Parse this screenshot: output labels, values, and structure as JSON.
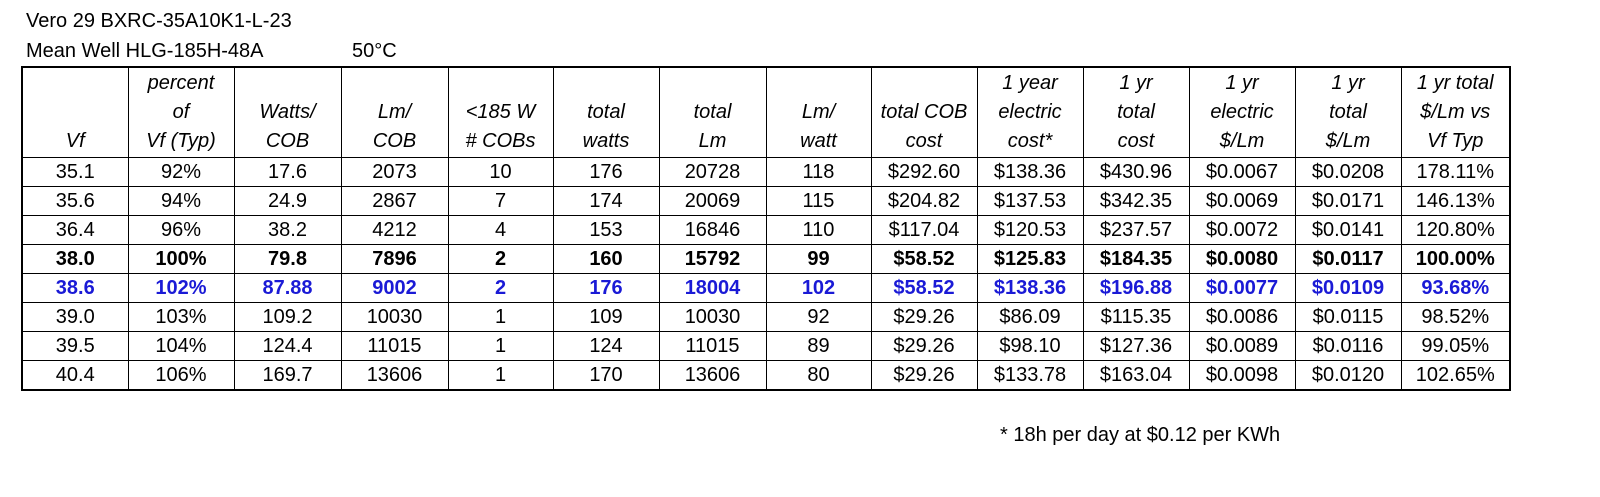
{
  "header": {
    "line1": "Vero 29 BXRC-35A10K1-L-23",
    "line2": "Mean Well HLG-185H-48A",
    "temperature": "50°C"
  },
  "table": {
    "columns": [
      [
        "",
        "",
        "Vf"
      ],
      [
        "percent",
        "of",
        "Vf (Typ)"
      ],
      [
        "",
        "Watts/",
        "COB"
      ],
      [
        "",
        "Lm/",
        "COB"
      ],
      [
        "",
        "<185 W",
        "# COBs"
      ],
      [
        "",
        "total",
        "watts"
      ],
      [
        "",
        "total",
        "Lm"
      ],
      [
        "",
        "Lm/",
        "watt"
      ],
      [
        "",
        "total COB",
        "cost"
      ],
      [
        "1 year",
        "electric",
        "cost*"
      ],
      [
        "1 yr",
        "total",
        "cost"
      ],
      [
        "1 yr",
        "electric",
        "$/Lm"
      ],
      [
        "1 yr",
        "total",
        "$/Lm"
      ],
      [
        "1 yr total",
        "$/Lm vs",
        "Vf Typ"
      ]
    ],
    "rows": [
      {
        "style": "normal",
        "cells": [
          "35.1",
          "92%",
          "17.6",
          "2073",
          "10",
          "176",
          "20728",
          "118",
          "$292.60",
          "$138.36",
          "$430.96",
          "$0.0067",
          "$0.0208",
          "178.11%"
        ]
      },
      {
        "style": "normal",
        "cells": [
          "35.6",
          "94%",
          "24.9",
          "2867",
          "7",
          "174",
          "20069",
          "115",
          "$204.82",
          "$137.53",
          "$342.35",
          "$0.0069",
          "$0.0171",
          "146.13%"
        ]
      },
      {
        "style": "normal",
        "cells": [
          "36.4",
          "96%",
          "38.2",
          "4212",
          "4",
          "153",
          "16846",
          "110",
          "$117.04",
          "$120.53",
          "$237.57",
          "$0.0072",
          "$0.0141",
          "120.80%"
        ]
      },
      {
        "style": "bold",
        "cells": [
          "38.0",
          "100%",
          "79.8",
          "7896",
          "2",
          "160",
          "15792",
          "99",
          "$58.52",
          "$125.83",
          "$184.35",
          "$0.0080",
          "$0.0117",
          "100.00%"
        ]
      },
      {
        "style": "blue",
        "cells": [
          "38.6",
          "102%",
          "87.88",
          "9002",
          "2",
          "176",
          "18004",
          "102",
          "$58.52",
          "$138.36",
          "$196.88",
          "$0.0077",
          "$0.0109",
          "93.68%"
        ]
      },
      {
        "style": "normal",
        "cells": [
          "39.0",
          "103%",
          "109.2",
          "10030",
          "1",
          "109",
          "10030",
          "92",
          "$29.26",
          "$86.09",
          "$115.35",
          "$0.0086",
          "$0.0115",
          "98.52%"
        ]
      },
      {
        "style": "normal",
        "cells": [
          "39.5",
          "104%",
          "124.4",
          "11015",
          "1",
          "124",
          "11015",
          "89",
          "$29.26",
          "$98.10",
          "$127.36",
          "$0.0089",
          "$0.0116",
          "99.05%"
        ]
      },
      {
        "style": "normal",
        "cells": [
          "40.4",
          "106%",
          "169.7",
          "13606",
          "1",
          "170",
          "13606",
          "80",
          "$29.26",
          "$133.78",
          "$163.04",
          "$0.0098",
          "$0.0120",
          "102.65%"
        ]
      }
    ]
  },
  "footnote": "* 18h per day at $0.12 per KWh",
  "colors": {
    "highlight_row": "#1a1ad6"
  }
}
